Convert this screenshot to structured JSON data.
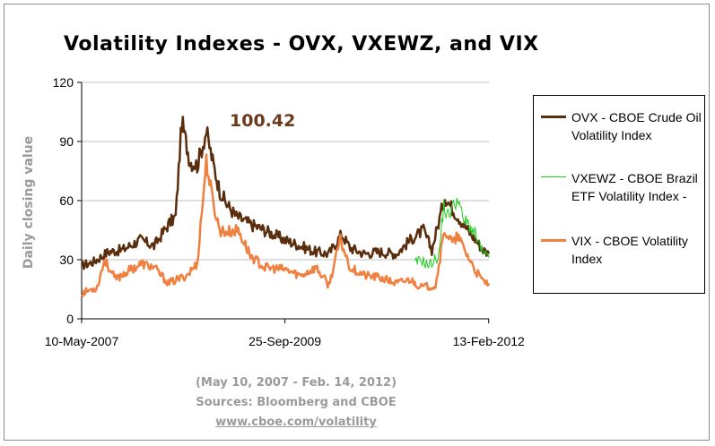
{
  "title": "Volatility Indexes - OVX, VXEWZ, and VIX",
  "annotation": "100.42",
  "footer": {
    "line1": "(May 10, 2007 - Feb. 14, 2012)",
    "line2": "Sources: Bloomberg and CBOE",
    "link": "www.cboe.com/volatility"
  },
  "colors": {
    "ovx": "#5a2d0c",
    "vxewz": "#22cc22",
    "vix": "#f08040",
    "grid": "#c0c0c0"
  },
  "chart_data": {
    "type": "line",
    "title": "Volatility Indexes - OVX, VXEWZ, and VIX",
    "ylabel": "Daily closing value",
    "xlabel": "",
    "ylim": [
      0,
      120
    ],
    "yticks": [
      0,
      30,
      60,
      90,
      120
    ],
    "xlim": [
      "2007-05-10",
      "2012-02-14"
    ],
    "xticklabels": [
      "10-May-2007",
      "25-Sep-2009",
      "13-Feb-2012"
    ],
    "xtick_dates": [
      "2007-05-10",
      "2009-09-25",
      "2012-02-13"
    ],
    "grid": "horizontal",
    "legend": "right",
    "annotations": [
      {
        "text": "100.42",
        "date": "2008-07-11",
        "value": 100.42
      }
    ],
    "series": [
      {
        "name": "OVX - CBOE Crude Oil Volatility Index",
        "x": [
          "2007-05-10",
          "2007-07-01",
          "2007-09-01",
          "2007-11-01",
          "2008-01-15",
          "2008-03-15",
          "2008-05-15",
          "2008-06-15",
          "2008-07-11",
          "2008-08-15",
          "2008-09-15",
          "2008-10-24",
          "2008-11-20",
          "2008-12-20",
          "2009-01-20",
          "2009-03-01",
          "2009-05-01",
          "2009-07-01",
          "2009-09-25",
          "2009-12-01",
          "2010-02-01",
          "2010-04-01",
          "2010-05-25",
          "2010-07-01",
          "2010-09-01",
          "2010-11-01",
          "2011-01-15",
          "2011-03-15",
          "2011-05-10",
          "2011-06-15",
          "2011-08-10",
          "2011-09-15",
          "2011-10-05",
          "2011-11-15",
          "2011-12-20",
          "2012-01-20",
          "2012-02-14"
        ],
        "values": [
          27,
          29,
          34,
          35,
          40,
          37,
          48,
          52,
          100,
          80,
          78,
          95,
          80,
          65,
          58,
          52,
          48,
          45,
          40,
          37,
          34,
          33,
          43,
          36,
          33,
          34,
          33,
          40,
          45,
          35,
          62,
          55,
          52,
          45,
          40,
          35,
          33
        ]
      },
      {
        "name": "VXEWZ - CBOE Brazil ETF Volatility Index -",
        "x": [
          "2011-04-01",
          "2011-05-01",
          "2011-06-01",
          "2011-07-15",
          "2011-08-05",
          "2011-08-20",
          "2011-09-15",
          "2011-10-05",
          "2011-10-25",
          "2011-11-20",
          "2011-12-20",
          "2012-01-20",
          "2012-02-14"
        ],
        "values": [
          28,
          30,
          27,
          32,
          58,
          52,
          57,
          62,
          50,
          48,
          42,
          33,
          31
        ]
      },
      {
        "name": "VIX - CBOE Volatility Index",
        "x": [
          "2007-05-10",
          "2007-07-15",
          "2007-08-16",
          "2007-10-01",
          "2007-11-20",
          "2008-01-22",
          "2008-03-15",
          "2008-05-15",
          "2008-08-01",
          "2008-09-15",
          "2008-10-24",
          "2008-11-20",
          "2008-12-20",
          "2009-01-20",
          "2009-03-09",
          "2009-05-01",
          "2009-07-01",
          "2009-09-25",
          "2009-12-01",
          "2010-02-05",
          "2010-04-01",
          "2010-05-20",
          "2010-07-01",
          "2010-09-01",
          "2010-11-01",
          "2011-01-15",
          "2011-03-15",
          "2011-05-01",
          "2011-07-01",
          "2011-08-08",
          "2011-09-15",
          "2011-10-03",
          "2011-11-15",
          "2011-12-20",
          "2012-01-20",
          "2012-02-14"
        ],
        "values": [
          13,
          16,
          30,
          20,
          24,
          28,
          26,
          18,
          22,
          28,
          80,
          60,
          45,
          44,
          45,
          32,
          26,
          25,
          22,
          26,
          17,
          40,
          26,
          22,
          21,
          18,
          20,
          16,
          17,
          45,
          38,
          42,
          32,
          24,
          19,
          18
        ]
      }
    ]
  }
}
